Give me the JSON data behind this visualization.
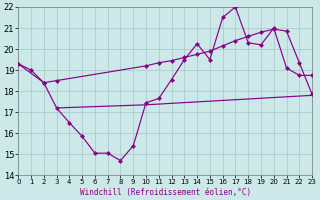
{
  "xlabel": "Windchill (Refroidissement éolien,°C)",
  "bg_color": "#cce8e8",
  "grid_color": "#aacccc",
  "line_color": "#880088",
  "xmin": 0,
  "xmax": 23,
  "ymin": 14,
  "ymax": 22,
  "yticks": [
    14,
    15,
    16,
    17,
    18,
    19,
    20,
    21,
    22
  ],
  "xticks": [
    0,
    1,
    2,
    3,
    4,
    5,
    6,
    7,
    8,
    9,
    10,
    11,
    12,
    13,
    14,
    15,
    16,
    17,
    18,
    19,
    20,
    21,
    22,
    23
  ],
  "line1_x": [
    0,
    1,
    2,
    3,
    4,
    5,
    6,
    7,
    8,
    9,
    10,
    11,
    12,
    13,
    14,
    15,
    16,
    17,
    18,
    19,
    20,
    21,
    22,
    23
  ],
  "line1_y": [
    19.3,
    19.0,
    18.4,
    17.2,
    16.5,
    15.85,
    15.05,
    15.05,
    14.7,
    15.4,
    17.45,
    17.65,
    18.55,
    19.5,
    20.25,
    19.5,
    21.5,
    22.0,
    20.3,
    20.2,
    21.0,
    19.1,
    18.75,
    18.75
  ],
  "line2_x": [
    0,
    2,
    3,
    10,
    11,
    12,
    13,
    14,
    15,
    16,
    17,
    18,
    19,
    20,
    21,
    22,
    23
  ],
  "line2_y": [
    19.3,
    18.4,
    18.5,
    19.2,
    19.35,
    19.45,
    19.6,
    19.75,
    19.9,
    20.15,
    20.4,
    20.6,
    20.8,
    20.95,
    20.85,
    19.35,
    17.85
  ],
  "line3_x": [
    3,
    10,
    23
  ],
  "line3_y": [
    17.2,
    17.35,
    17.8
  ]
}
